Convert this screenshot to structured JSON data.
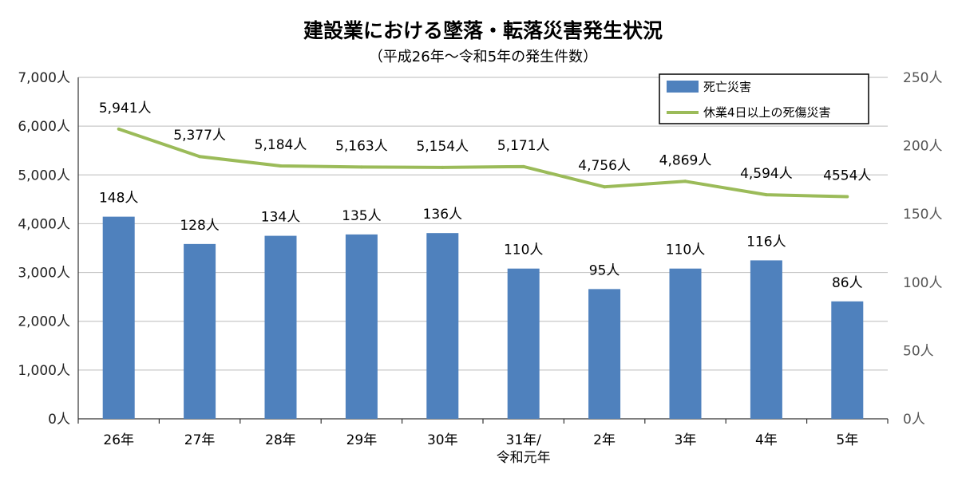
{
  "chart_data": {
    "type": "bar+line",
    "title": "建設業における墜落・転落災害発生状況",
    "subtitle": "（平成26年～令和5年の発生件数）",
    "categories": [
      [
        "26年"
      ],
      [
        "27年"
      ],
      [
        "28年"
      ],
      [
        "29年"
      ],
      [
        "30年"
      ],
      [
        "31年/",
        "令和元年"
      ],
      [
        "2年"
      ],
      [
        "3年"
      ],
      [
        "4年"
      ],
      [
        "5年"
      ]
    ],
    "left_axis": {
      "min": 0,
      "max": 7000,
      "step": 1000,
      "tick_labels": [
        "0人",
        "1,000人",
        "2,000人",
        "3,000人",
        "4,000人",
        "5,000人",
        "6,000人",
        "7,000人"
      ]
    },
    "right_axis": {
      "min": 0,
      "max": 250,
      "step": 50,
      "tick_labels": [
        "0人",
        "50人",
        "100人",
        "150人",
        "200人",
        "250人"
      ]
    },
    "grid": true,
    "legend_position": "top-right",
    "series": [
      {
        "name": "死亡災害",
        "type": "bar",
        "axis": "right",
        "color": "#4F81BD",
        "values": [
          148,
          128,
          134,
          135,
          136,
          110,
          95,
          110,
          116,
          86
        ],
        "labels": [
          "148人",
          "128人",
          "134人",
          "135人",
          "136人",
          "110人",
          "95人",
          "110人",
          "116人",
          "86人"
        ]
      },
      {
        "name": "休業4日以上の死傷災害",
        "type": "line",
        "axis": "left",
        "color": "#9BBB59",
        "values": [
          5941,
          5377,
          5184,
          5163,
          5154,
          5171,
          4756,
          4869,
          4594,
          4554
        ],
        "labels": [
          "5,941人",
          "5,377人",
          "5,184人",
          "5,163人",
          "5,154人",
          "5,171人",
          "4,756人",
          "4,869人",
          "4,594人",
          "4554人"
        ]
      }
    ]
  }
}
